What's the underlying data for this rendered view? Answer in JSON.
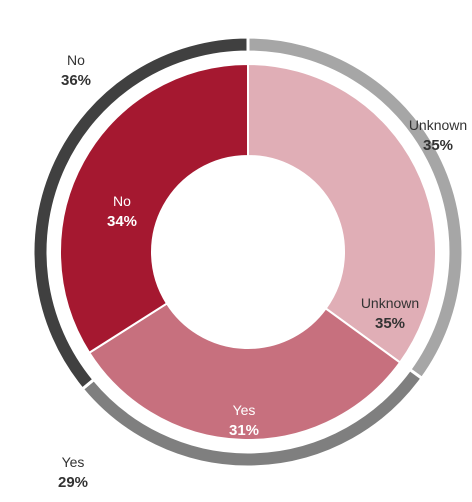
{
  "chart_data": {
    "type": "pie",
    "variant": "nested-donut",
    "title": "",
    "series": [
      {
        "ring": "inner",
        "categories": [
          "Unknown",
          "Yes",
          "No"
        ],
        "values": [
          35,
          31,
          34
        ],
        "labels": [
          "35%",
          "31%",
          "34%"
        ],
        "colors": [
          "#E0AEB6",
          "#C7707E",
          "#A51830"
        ],
        "label_colors": [
          "#333333",
          "#ffffff",
          "#ffffff"
        ]
      },
      {
        "ring": "outer",
        "categories": [
          "Unknown",
          "Yes",
          "No"
        ],
        "values": [
          35,
          29,
          36
        ],
        "labels": [
          "35%",
          "29%",
          "36%"
        ],
        "colors": [
          "#A6A6A6",
          "#7F7F7F",
          "#404040"
        ],
        "label_colors": [
          "#333333",
          "#333333",
          "#333333"
        ]
      }
    ],
    "start_angle_deg": 0,
    "direction": "clockwise",
    "legend": "none"
  }
}
